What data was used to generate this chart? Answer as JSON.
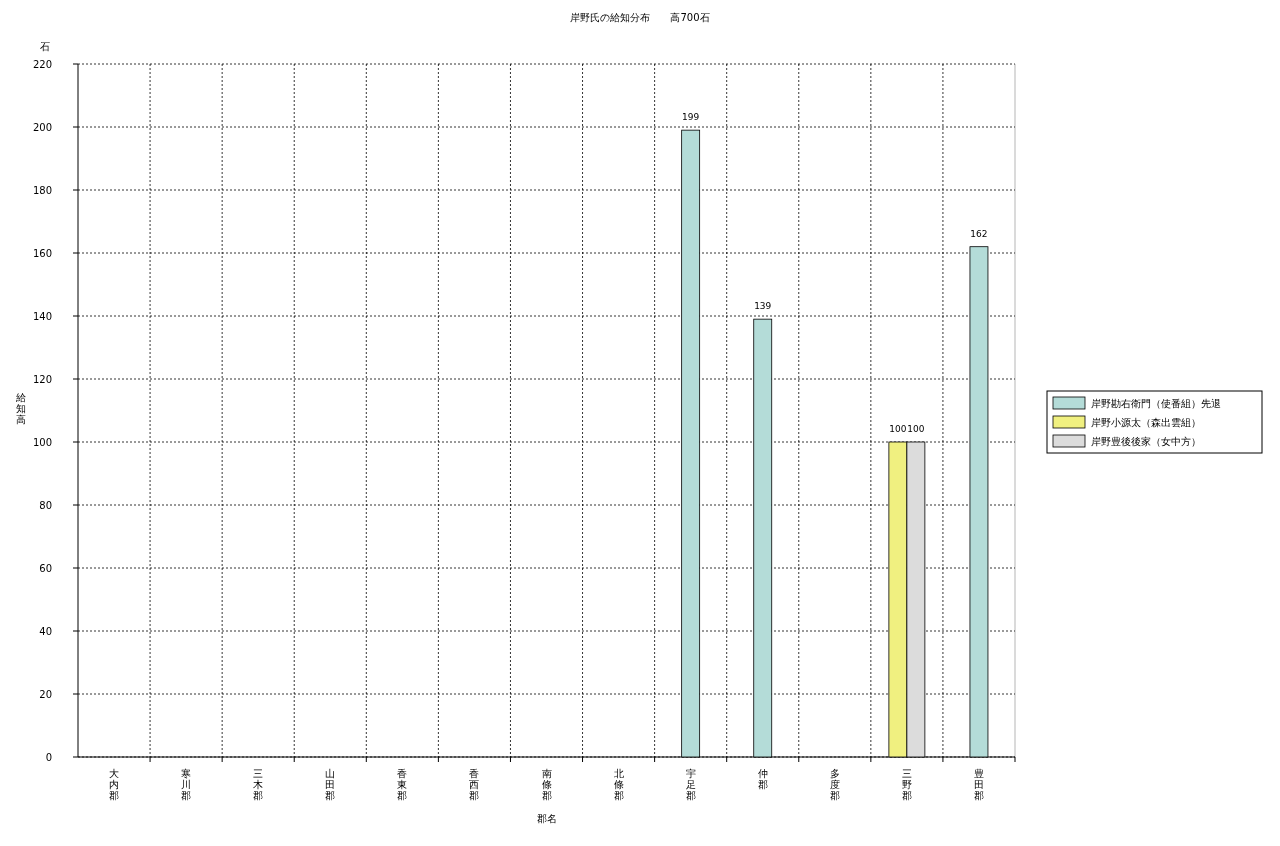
{
  "chart_data": {
    "type": "bar",
    "title": "岸野氏の給知分布　　高700石",
    "xlabel": "郡名",
    "ylabel": "給知高",
    "annotations": [
      "石"
    ],
    "categories": [
      "大内郡",
      "寒川郡",
      "三木郡",
      "山田郡",
      "香東郡",
      "香西郡",
      "南條郡",
      "北條郡",
      "宇足郡",
      "仲郡",
      "多度郡",
      "三野郡",
      "豊田郡"
    ],
    "series": [
      {
        "name": "岸野勘右衛門（使番組）先退",
        "color": "#b4dcd8",
        "values": [
          null,
          null,
          null,
          null,
          null,
          null,
          null,
          null,
          199,
          139,
          null,
          null,
          162
        ]
      },
      {
        "name": "岸野小源太（森出雲組）",
        "color": "#f0f080",
        "values": [
          null,
          null,
          null,
          null,
          null,
          null,
          null,
          null,
          null,
          null,
          null,
          100,
          null
        ]
      },
      {
        "name": "岸野豊後後家（女中方）",
        "color": "#dcdcdc",
        "values": [
          null,
          null,
          null,
          null,
          null,
          null,
          null,
          null,
          null,
          null,
          null,
          100,
          null
        ]
      }
    ],
    "ylim": [
      0,
      220
    ],
    "yticks": [
      0,
      20,
      40,
      60,
      80,
      100,
      120,
      140,
      160,
      180,
      200,
      220
    ],
    "grid": true,
    "legend": "right",
    "data_labels": true
  }
}
